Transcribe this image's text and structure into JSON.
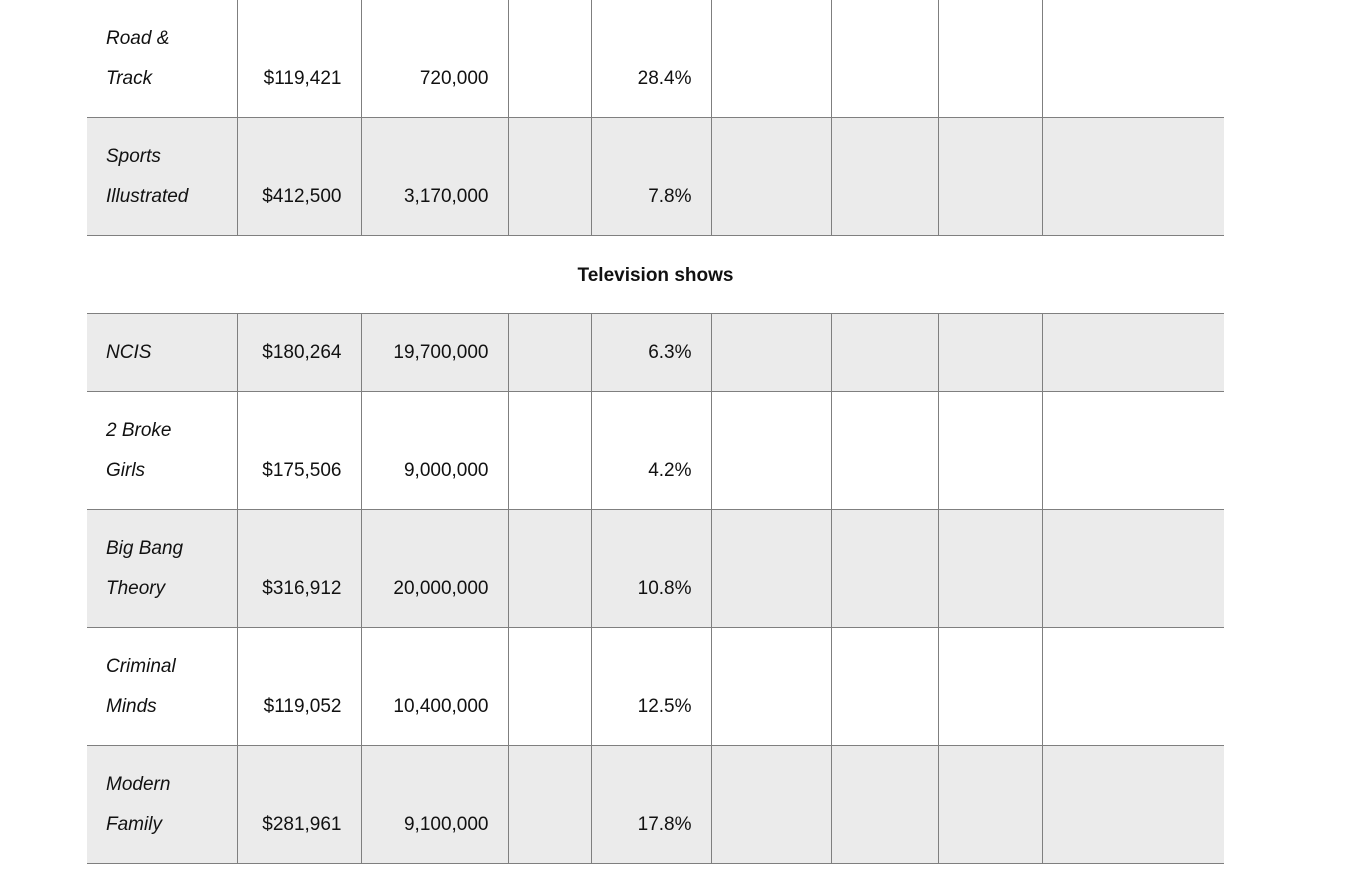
{
  "table": {
    "magazine_rows": [
      {
        "name_line1": "Road &",
        "name_line2": "Track",
        "cost": "$119,421",
        "audience": "720,000",
        "pct": "28.4%"
      },
      {
        "name_line1": "Sports",
        "name_line2": "Illustrated",
        "cost": "$412,500",
        "audience": "3,170,000",
        "pct": "7.8%"
      }
    ],
    "section_title": "Television shows",
    "tv_rows": [
      {
        "name_line1": "NCIS",
        "name_line2": "",
        "cost": "$180,264",
        "audience": "19,700,000",
        "pct": "6.3%"
      },
      {
        "name_line1": "2 Broke",
        "name_line2": "Girls",
        "cost": "$175,506",
        "audience": "9,000,000",
        "pct": "4.2%"
      },
      {
        "name_line1": "Big Bang",
        "name_line2": "Theory",
        "cost": "$316,912",
        "audience": "20,000,000",
        "pct": "10.8%"
      },
      {
        "name_line1": "Criminal",
        "name_line2": "Minds",
        "cost": "$119,052",
        "audience": "10,400,000",
        "pct": "12.5%"
      },
      {
        "name_line1": "Modern",
        "name_line2": "Family",
        "cost": "$281,961",
        "audience": "9,100,000",
        "pct": "17.8%"
      }
    ]
  }
}
